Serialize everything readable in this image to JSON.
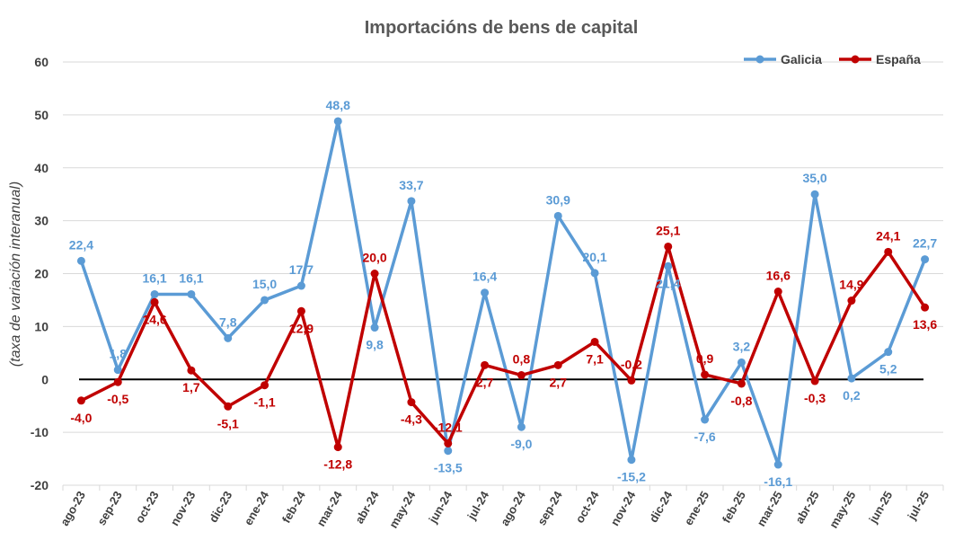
{
  "chart_data": {
    "type": "line",
    "title": "Importacións de bens de capital",
    "ylabel": "(taxa de variación interanual)",
    "xlabel": "",
    "ylim": [
      -20,
      60
    ],
    "yticks": [
      "60",
      "50",
      "40",
      "30",
      "20",
      "10",
      "0",
      "-10",
      "-20"
    ],
    "grid": true,
    "legend_position": "top-right",
    "categories": [
      "ago-23",
      "sep-23",
      "oct-23",
      "nov-23",
      "dic-23",
      "ene-24",
      "feb-24",
      "mar-24",
      "abr-24",
      "may-24",
      "jun-24",
      "jul-24",
      "ago-24",
      "sep-24",
      "oct-24",
      "nov-24",
      "dic-24",
      "ene-25",
      "feb-25",
      "mar-25",
      "abr-25",
      "may-25",
      "jun-25",
      "jul-25"
    ],
    "series": [
      {
        "name": "Galicia",
        "color": "#5B9BD5",
        "values": [
          22.4,
          1.8,
          16.1,
          16.1,
          7.8,
          15.0,
          17.7,
          48.8,
          9.8,
          33.7,
          -13.5,
          16.4,
          -9.0,
          30.9,
          20.1,
          -15.2,
          21.4,
          -7.6,
          3.2,
          -16.1,
          35.0,
          0.2,
          5.2,
          22.7
        ],
        "labels": [
          "22,4",
          "1,8",
          "16,1",
          "16,1",
          "7,8",
          "15,0",
          "17,7",
          "48,8",
          "9,8",
          "33,7",
          "-13,5",
          "16,4",
          "-9,0",
          "30,9",
          "20,1",
          "-15,2",
          "21,4",
          "-7,6",
          "3,2",
          "-16,1",
          "35,0",
          "0,2",
          "5,2",
          "22,7"
        ]
      },
      {
        "name": "España",
        "color": "#C00000",
        "values": [
          -4.0,
          -0.5,
          14.6,
          1.7,
          -5.1,
          -1.1,
          12.9,
          -12.8,
          20.0,
          -4.3,
          -12.1,
          2.7,
          0.8,
          2.7,
          7.1,
          -0.2,
          25.1,
          0.9,
          -0.8,
          16.6,
          -0.3,
          14.9,
          24.1,
          13.6
        ],
        "labels": [
          "-4,0",
          "-0,5",
          "14,6",
          "1,7",
          "-5,1",
          "-1,1",
          "12,9",
          "-12,8",
          "20,0",
          "-4,3",
          "-12,1",
          "2,7",
          "0,8",
          "2,7",
          "7,1",
          "-0,2",
          "25,1",
          "0,9",
          "-0,8",
          "16,6",
          "-0,3",
          "14,9",
          "24,1",
          "13,6"
        ]
      }
    ]
  }
}
